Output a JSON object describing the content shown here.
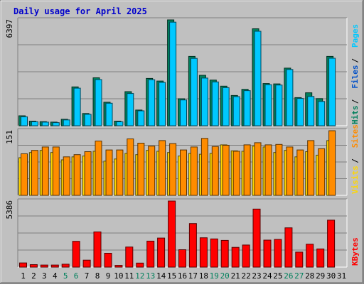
{
  "title": "Daily usage for April 2025",
  "colors": {
    "background": "#c0c0c0",
    "frame": "#808080",
    "plot": "#c0c0c0",
    "title": "#0000cc",
    "hits": "#00805c",
    "files": "#00c8ff",
    "pages": "#00c8ff",
    "visits": "#ffd700",
    "sites": "#ff8c00",
    "kbytes": "#ff0000",
    "weekend_label": "#00805c",
    "weekday_label": "#000000"
  },
  "chart_data": [
    {
      "type": "bar",
      "panel": "hits-files-pages",
      "ymax_label": "6397",
      "ylim": [
        0,
        6397
      ],
      "grid": true,
      "categories": [
        "1",
        "2",
        "3",
        "4",
        "5",
        "6",
        "7",
        "8",
        "9",
        "10",
        "11",
        "12",
        "13",
        "14",
        "15",
        "16",
        "17",
        "18",
        "19",
        "20",
        "21",
        "22",
        "23",
        "24",
        "25",
        "26",
        "27",
        "28",
        "29",
        "30",
        "31"
      ],
      "legend": [
        {
          "text": "Hits",
          "color": "#00805c"
        },
        {
          "text": "Files",
          "color": "#0050c8"
        },
        {
          "text": "Pages",
          "color": "#00c8ff"
        }
      ],
      "series": [
        {
          "name": "Hits",
          "values": [
            600,
            280,
            250,
            220,
            390,
            2350,
            740,
            2900,
            1420,
            280,
            2060,
            950,
            2860,
            2700,
            6397,
            1630,
            4190,
            3050,
            2760,
            2390,
            1830,
            2200,
            5860,
            2550,
            2530,
            3480,
            1700,
            1990,
            1640,
            4190,
            0
          ]
        },
        {
          "name": "Files",
          "values": [
            540,
            240,
            220,
            190,
            350,
            2270,
            690,
            2790,
            1360,
            240,
            1950,
            900,
            2780,
            2620,
            6260,
            1560,
            4070,
            2880,
            2650,
            2300,
            1760,
            2120,
            5710,
            2480,
            2460,
            3400,
            1650,
            1770,
            1470,
            4080,
            0
          ]
        }
      ]
    },
    {
      "type": "bar",
      "panel": "visits-sites",
      "ymax_label": "151",
      "ylim": [
        0,
        151
      ],
      "grid": true,
      "categories": [
        "1",
        "2",
        "3",
        "4",
        "5",
        "6",
        "7",
        "8",
        "9",
        "10",
        "11",
        "12",
        "13",
        "14",
        "15",
        "16",
        "17",
        "18",
        "19",
        "20",
        "21",
        "22",
        "23",
        "24",
        "25",
        "26",
        "27",
        "28",
        "29",
        "30",
        "31"
      ],
      "legend": [
        {
          "text": "Visits",
          "color": "#ffd700"
        },
        {
          "text": "Sites",
          "color": "#ff8c00"
        }
      ],
      "series": [
        {
          "name": "Visits",
          "values": [
            88,
            100,
            105,
            100,
            83,
            90,
            92,
            103,
            80,
            85,
            98,
            95,
            105,
            103,
            100,
            92,
            98,
            96,
            98,
            118,
            104,
            103,
            115,
            113,
            100,
            105,
            90,
            102,
            94,
            128,
            0
          ]
        },
        {
          "name": "Sites",
          "values": [
            97,
            105,
            113,
            113,
            90,
            95,
            102,
            127,
            106,
            106,
            132,
            122,
            115,
            128,
            121,
            106,
            113,
            133,
            114,
            117,
            103,
            118,
            123,
            118,
            119,
            113,
            106,
            128,
            109,
            151,
            0
          ]
        }
      ]
    },
    {
      "type": "bar",
      "panel": "kbytes",
      "ymax_label": "5386",
      "ylim": [
        0,
        5386
      ],
      "grid": true,
      "categories": [
        "1",
        "2",
        "3",
        "4",
        "5",
        "6",
        "7",
        "8",
        "9",
        "10",
        "11",
        "12",
        "13",
        "14",
        "15",
        "16",
        "17",
        "18",
        "19",
        "20",
        "21",
        "22",
        "23",
        "24",
        "25",
        "26",
        "27",
        "28",
        "29",
        "30",
        "31"
      ],
      "legend": [
        {
          "text": "KBytes",
          "color": "#ff0000"
        }
      ],
      "series": [
        {
          "name": "KBytes",
          "values": [
            340,
            200,
            170,
            170,
            240,
            2100,
            570,
            2870,
            1130,
            140,
            1640,
            330,
            2120,
            2370,
            5386,
            1420,
            3550,
            2390,
            2300,
            2180,
            1610,
            1800,
            4730,
            2200,
            2260,
            3200,
            1220,
            1870,
            1480,
            3830,
            0
          ]
        }
      ]
    }
  ]
}
